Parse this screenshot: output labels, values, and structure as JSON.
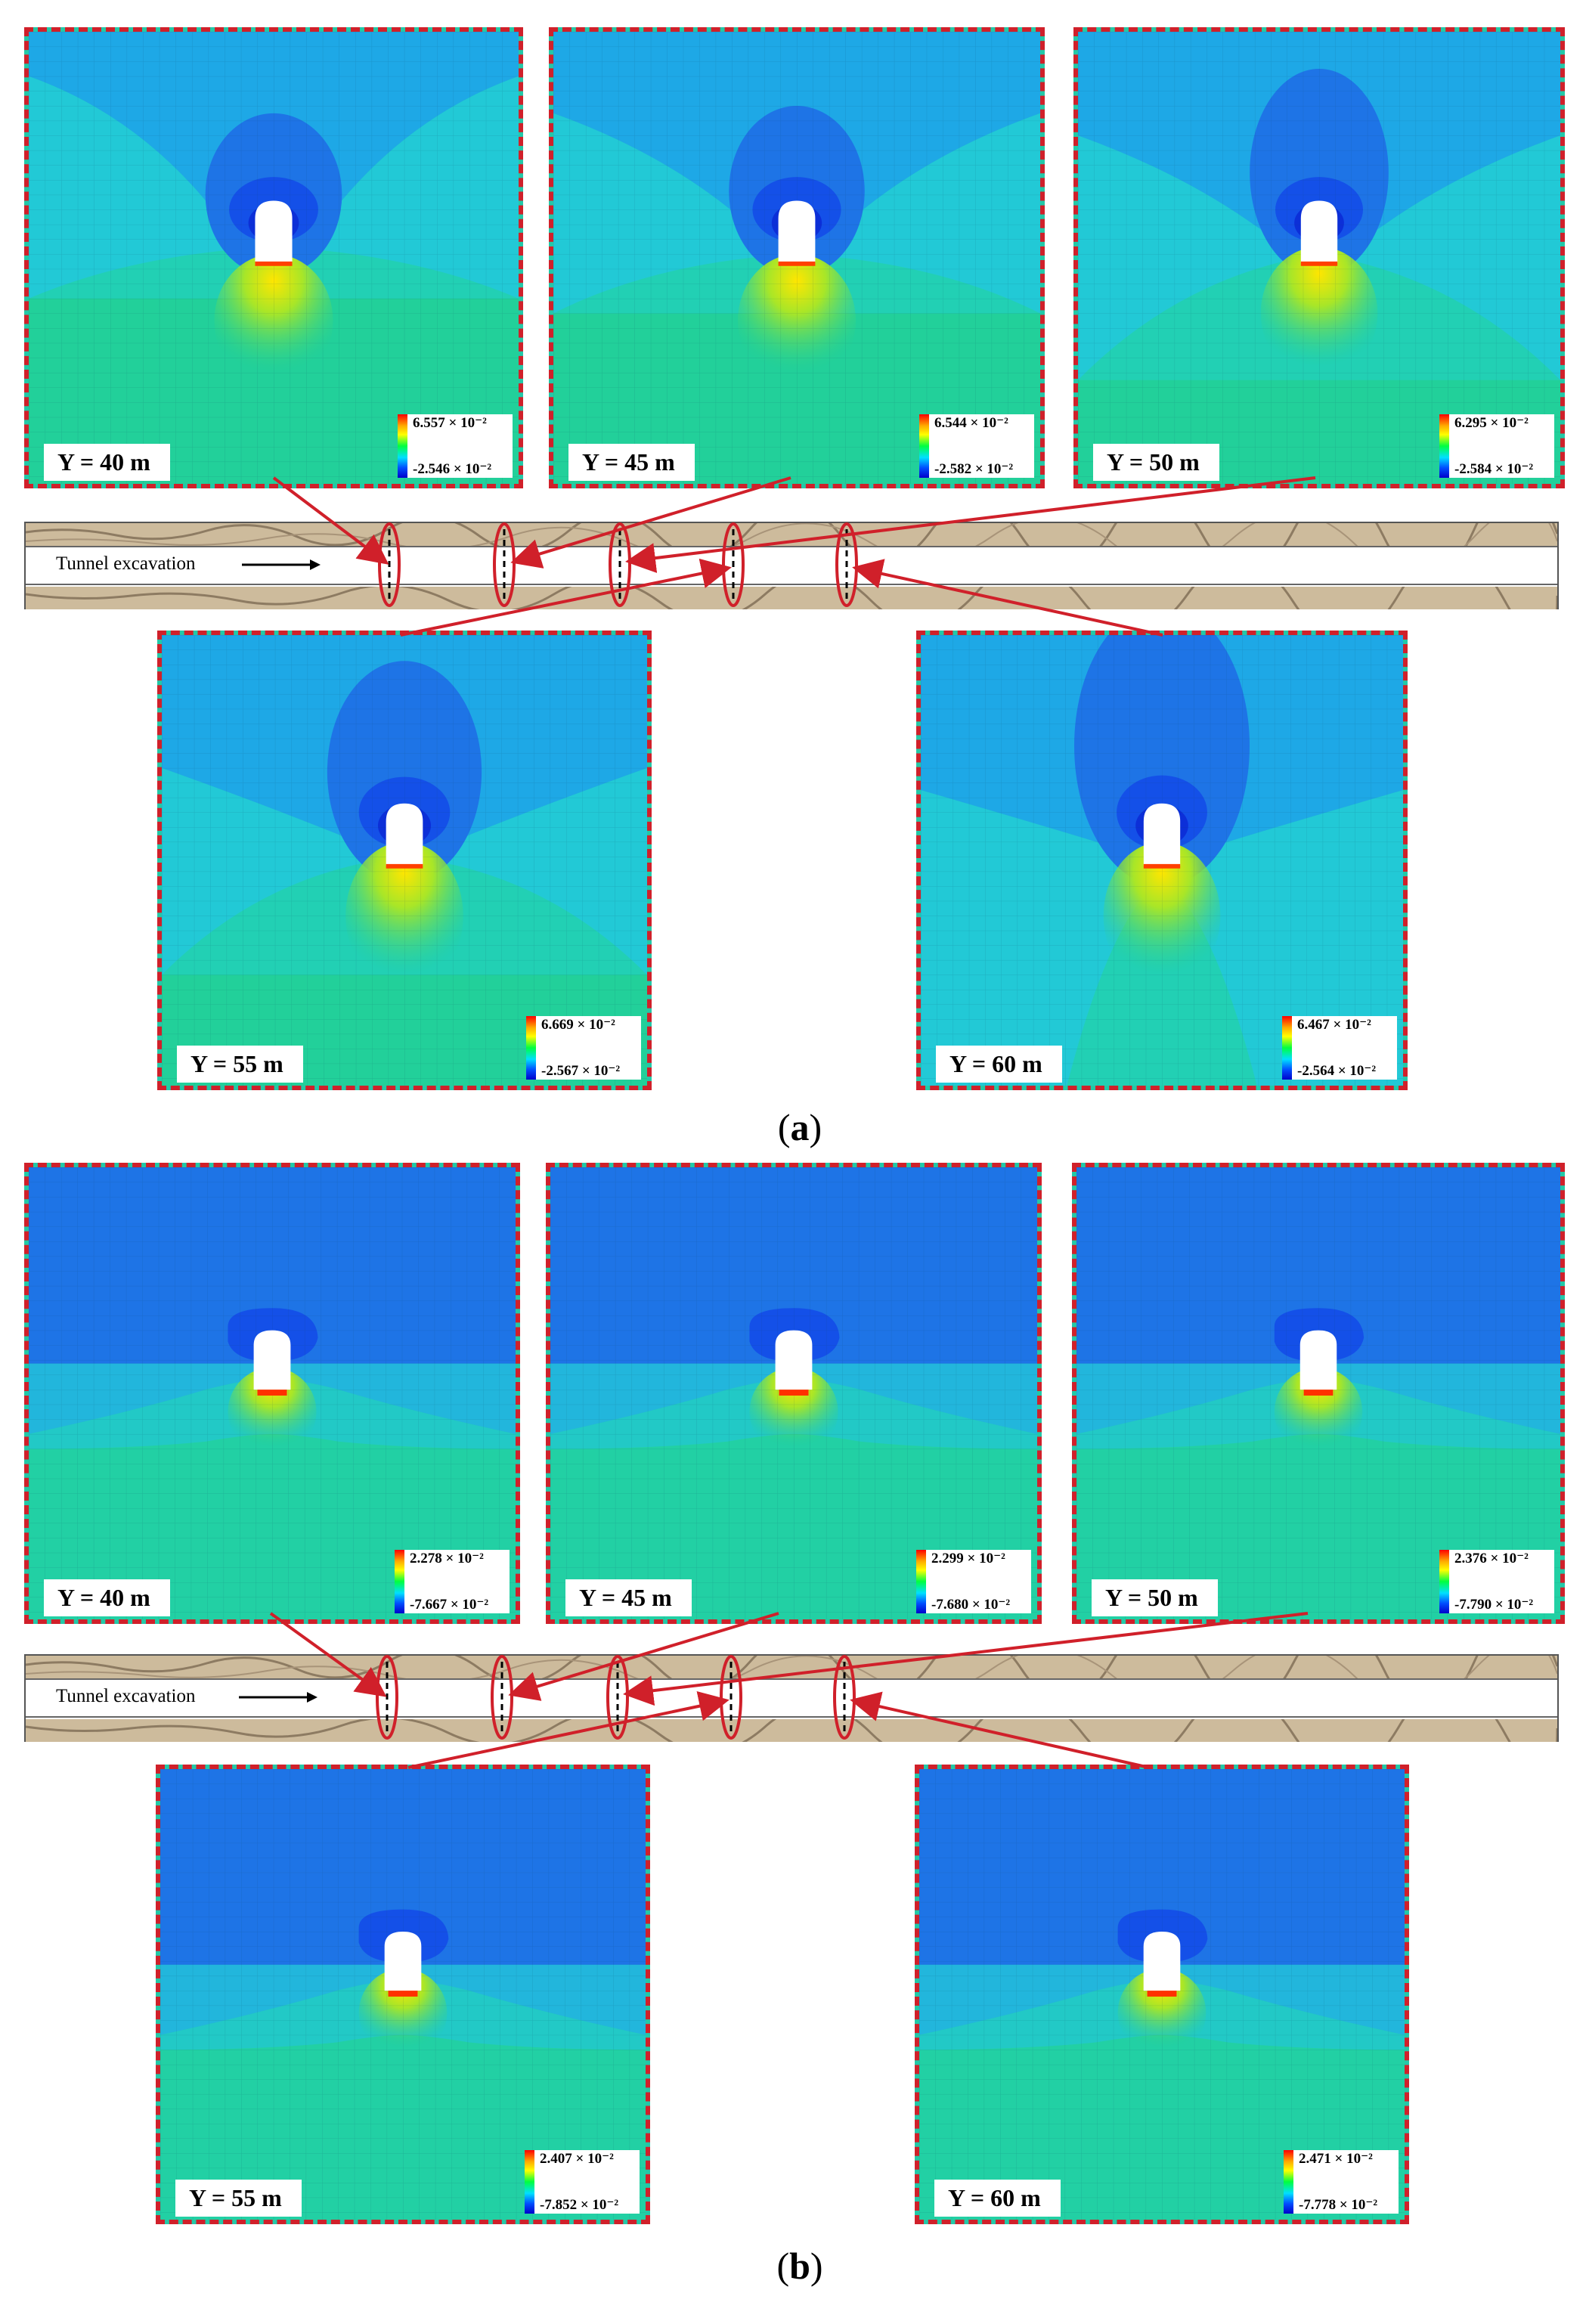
{
  "figure_a": {
    "caption_label": "a",
    "strip_label": "Tunnel excavation",
    "panels": [
      {
        "y_label": "Y = 40 m",
        "legend_max": "6.557 × 10⁻²",
        "legend_min": "-2.546 × 10⁻²"
      },
      {
        "y_label": "Y = 45 m",
        "legend_max": "6.544 × 10⁻²",
        "legend_min": "-2.582 × 10⁻²"
      },
      {
        "y_label": "Y = 50 m",
        "legend_max": "6.295 × 10⁻²",
        "legend_min": "-2.584 × 10⁻²"
      },
      {
        "y_label": "Y = 55 m",
        "legend_max": "6.669 × 10⁻²",
        "legend_min": "-2.567 × 10⁻²"
      },
      {
        "y_label": "Y = 60 m",
        "legend_max": "6.467 × 10⁻²",
        "legend_min": "-2.564 × 10⁻²"
      }
    ]
  },
  "figure_b": {
    "caption_label": "b",
    "strip_label": "Tunnel excavation",
    "panels": [
      {
        "y_label": "Y = 40 m",
        "legend_max": "2.278 × 10⁻²",
        "legend_min": "-7.667 × 10⁻²"
      },
      {
        "y_label": "Y = 45 m",
        "legend_max": "2.299 × 10⁻²",
        "legend_min": "-7.680 × 10⁻²"
      },
      {
        "y_label": "Y = 50 m",
        "legend_max": "2.376 × 10⁻²",
        "legend_min": "-7.790 × 10⁻²"
      },
      {
        "y_label": "Y = 55 m",
        "legend_max": "2.407 × 10⁻²",
        "legend_min": "-7.852 × 10⁻²"
      },
      {
        "y_label": "Y = 60 m",
        "legend_max": "2.471 × 10⁻²",
        "legend_min": "-7.778 × 10⁻²"
      }
    ]
  },
  "colors": {
    "panel_border": "#d0202a",
    "deep_blue": "#0f3be0",
    "mid_blue": "#1e74e6",
    "light_blue": "#1ea8e6",
    "cyan": "#22c9d6",
    "teal": "#22c9a8",
    "green": "#22d090",
    "rock": "#c9b79a"
  }
}
